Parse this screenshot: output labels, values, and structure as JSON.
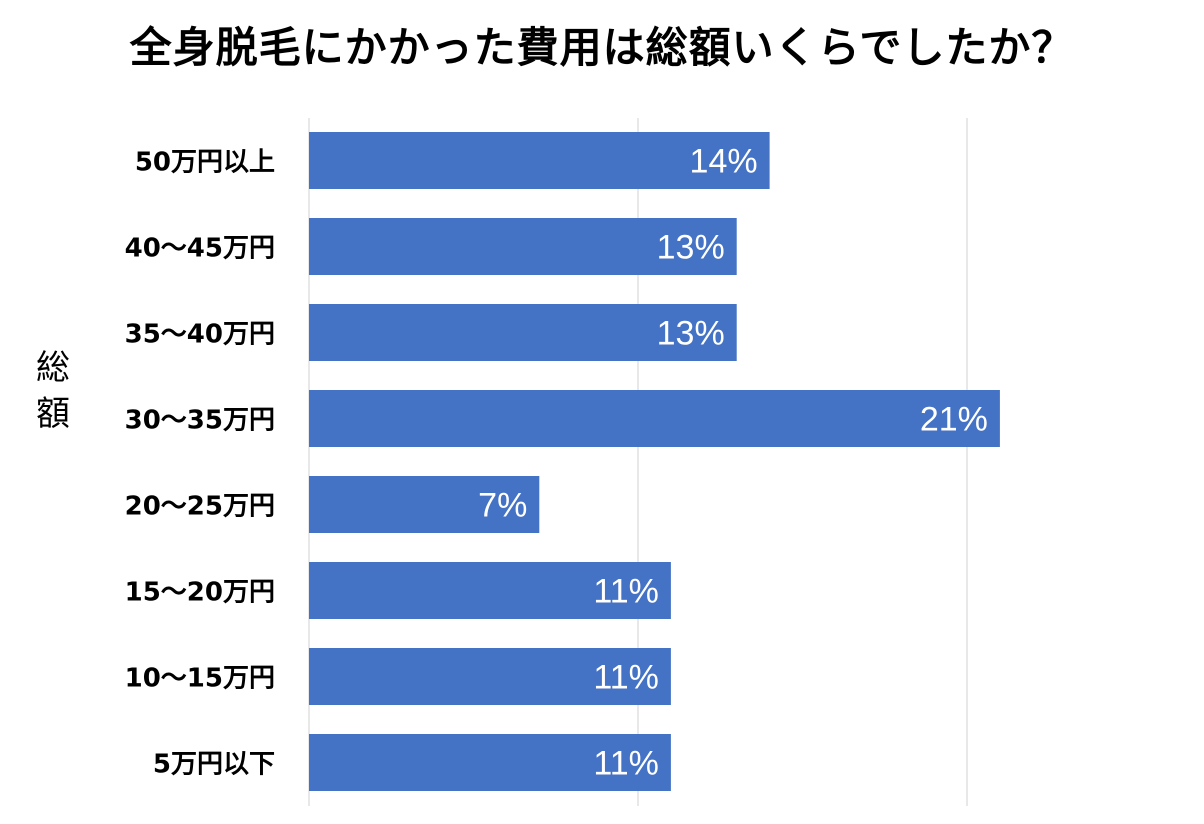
{
  "chart_data": {
    "type": "bar",
    "orientation": "horizontal",
    "title": "全身脱毛にかかった費用は総額いくらでしたか？",
    "ylabel": "総額",
    "xlabel": "",
    "categories": [
      "50万円以上",
      "40〜45万円",
      "35〜40万円",
      "30〜35万円",
      "20〜25万円",
      "15〜20万円",
      "10〜15万円",
      "5万円以下"
    ],
    "values": [
      14,
      13,
      13,
      21,
      7,
      11,
      11,
      11
    ],
    "value_labels": [
      "14%",
      "13%",
      "13%",
      "21%",
      "7%",
      "11%",
      "11%",
      "11%"
    ],
    "xlim": [
      0,
      20
    ],
    "gridlines": [
      0,
      10,
      20
    ],
    "grid": true,
    "legend": "none",
    "colors": {
      "bar": "#4472C4",
      "grid": "#e0e0e0",
      "label_on_bar": "#ffffff",
      "text": "#000000"
    }
  }
}
